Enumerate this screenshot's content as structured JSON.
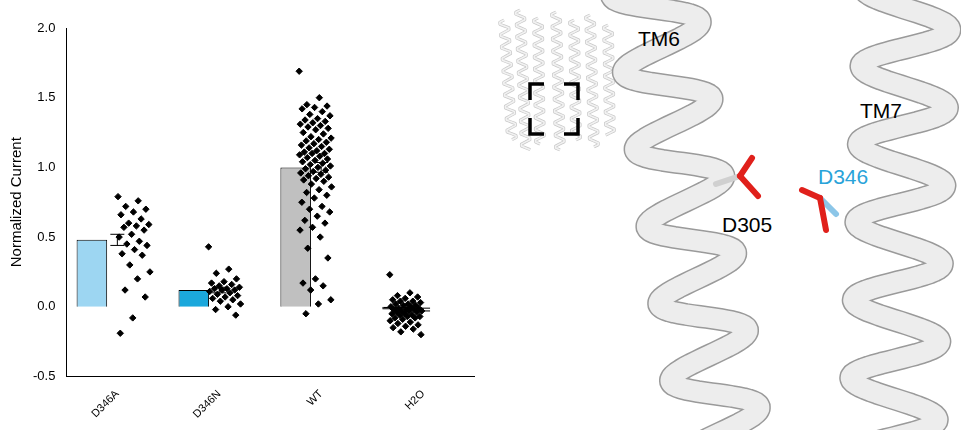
{
  "chart_data": {
    "type": "bar",
    "y_label": "Normalized Current",
    "categories": [
      "D346A",
      "D346N",
      "WT",
      "H2O"
    ],
    "values": [
      0.48,
      0.12,
      1.0,
      -0.02
    ],
    "errors": [
      0.04,
      0.02,
      0.035,
      0.01
    ],
    "colors": [
      "#9dd6f2",
      "#1ba8dc",
      "#c0c0c0",
      "#000000"
    ],
    "points": [
      [
        0.79,
        0.76,
        0.72,
        0.7,
        0.68,
        0.66,
        0.63,
        0.6,
        0.59,
        0.58,
        0.57,
        0.55,
        0.52,
        0.5,
        0.47,
        0.45,
        0.44,
        0.41,
        0.38,
        0.37,
        0.3,
        0.25,
        0.2,
        0.12,
        0.07,
        -0.08,
        -0.19
      ],
      [
        0.43,
        0.27,
        0.24,
        0.2,
        0.18,
        0.17,
        0.16,
        0.15,
        0.14,
        0.13,
        0.13,
        0.12,
        0.12,
        0.11,
        0.1,
        0.09,
        0.08,
        0.07,
        0.06,
        0.05,
        0.04,
        0.02,
        0.0,
        -0.02,
        -0.06
      ],
      [
        1.69,
        1.5,
        1.45,
        1.44,
        1.43,
        1.42,
        1.4,
        1.38,
        1.37,
        1.35,
        1.34,
        1.33,
        1.32,
        1.31,
        1.3,
        1.29,
        1.28,
        1.27,
        1.25,
        1.24,
        1.22,
        1.21,
        1.2,
        1.19,
        1.18,
        1.17,
        1.16,
        1.15,
        1.14,
        1.13,
        1.12,
        1.11,
        1.1,
        1.1,
        1.09,
        1.08,
        1.07,
        1.06,
        1.05,
        1.04,
        1.03,
        1.02,
        1.01,
        1.0,
        0.99,
        0.98,
        0.97,
        0.96,
        0.95,
        0.94,
        0.93,
        0.92,
        0.91,
        0.9,
        0.88,
        0.86,
        0.84,
        0.82,
        0.8,
        0.78,
        0.75,
        0.72,
        0.7,
        0.68,
        0.65,
        0.62,
        0.6,
        0.57,
        0.55,
        0.5,
        0.42,
        0.35,
        0.2,
        0.17,
        0.15,
        0.12,
        0.05,
        0.02,
        -0.05
      ],
      [
        0.23,
        0.1,
        0.08,
        0.07,
        0.06,
        0.05,
        0.04,
        0.04,
        0.03,
        0.02,
        0.02,
        0.01,
        0.01,
        0.0,
        0.0,
        -0.01,
        -0.01,
        -0.02,
        -0.02,
        -0.02,
        -0.03,
        -0.03,
        -0.03,
        -0.04,
        -0.04,
        -0.05,
        -0.05,
        -0.06,
        -0.06,
        -0.07,
        -0.07,
        -0.08,
        -0.08,
        -0.09,
        -0.1,
        -0.11,
        -0.12,
        -0.13,
        -0.14,
        -0.15,
        -0.16,
        -0.18,
        -0.2
      ]
    ],
    "marker": "diamond",
    "ylim": [
      -0.5,
      2.0
    ],
    "yticks": [
      {
        "value": -0.5,
        "label": "-0.5"
      },
      {
        "value": 0,
        "label": "0.0"
      },
      {
        "value": 0.5,
        "label": "0.5"
      },
      {
        "value": 1,
        "label": "1.0"
      },
      {
        "value": 1.5,
        "label": "1.5"
      },
      {
        "value": 2,
        "label": "2.0"
      }
    ],
    "grid": false
  },
  "diagram": {
    "helices": [
      "TM6",
      "TM7"
    ],
    "residues": [
      {
        "label": "D305",
        "color": "#000000"
      },
      {
        "label": "D346",
        "color": "#29a3d9"
      }
    ]
  }
}
